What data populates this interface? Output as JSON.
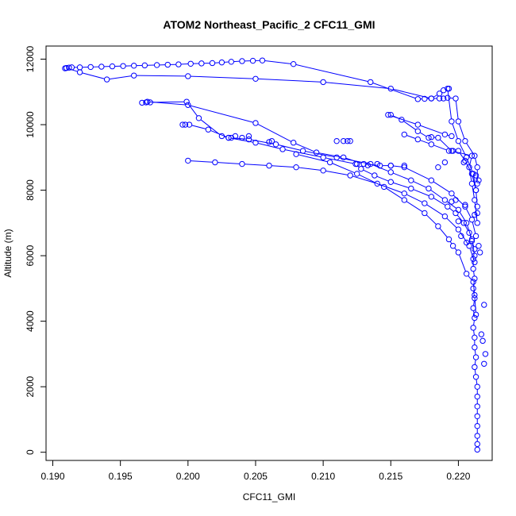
{
  "chart_data": {
    "type": "scatter",
    "title": "ATOM2 Northeast_Pacific_2 CFC11_GMI",
    "xlabel": "CFC11_GMI",
    "ylabel": "Altitude (m)",
    "xlim": [
      0.1895,
      0.2225
    ],
    "ylim": [
      -250,
      12400
    ],
    "xticks": [
      0.19,
      0.195,
      0.2,
      0.205,
      0.21,
      0.215,
      0.22
    ],
    "xtick_labels": [
      "0.190",
      "0.195",
      "0.200",
      "0.205",
      "0.210",
      "0.215",
      "0.220"
    ],
    "yticks": [
      0,
      2000,
      4000,
      6000,
      8000,
      10000,
      12000
    ],
    "ytick_labels": [
      "0",
      "2000",
      "4000",
      "6000",
      "8000",
      "10000",
      "12000"
    ],
    "grid": false,
    "legend": "none",
    "color": "#0000ff",
    "marker": "open-circle",
    "series": [
      {
        "connected": true,
        "points": [
          [
            0.2214,
            80
          ],
          [
            0.2214,
            250
          ],
          [
            0.2214,
            500
          ],
          [
            0.2214,
            800
          ],
          [
            0.2214,
            1100
          ],
          [
            0.2214,
            1400
          ],
          [
            0.2214,
            1700
          ],
          [
            0.2214,
            2000
          ],
          [
            0.2213,
            2300
          ],
          [
            0.2212,
            2600
          ],
          [
            0.2213,
            2900
          ],
          [
            0.2212,
            3200
          ],
          [
            0.2212,
            3500
          ],
          [
            0.2211,
            3800
          ],
          [
            0.2212,
            4100
          ],
          [
            0.2211,
            4400
          ],
          [
            0.2212,
            4700
          ],
          [
            0.2211,
            5000
          ],
          [
            0.2212,
            5300
          ],
          [
            0.2211,
            5600
          ],
          [
            0.2211,
            5900
          ],
          [
            0.2212,
            6200
          ],
          [
            0.221,
            6450
          ],
          [
            0.2208,
            6700
          ],
          [
            0.2204,
            7000
          ],
          [
            0.2198,
            7300
          ],
          [
            0.2192,
            7500
          ],
          [
            0.218,
            7800
          ],
          [
            0.2165,
            8050
          ],
          [
            0.215,
            8250
          ],
          [
            0.2138,
            8450
          ],
          [
            0.2128,
            8650
          ],
          [
            0.2124,
            8800
          ],
          [
            0.21,
            9000
          ],
          [
            0.207,
            9250
          ],
          [
            0.205,
            9450
          ],
          [
            0.203,
            9600
          ],
          [
            0.2015,
            9850
          ],
          [
            0.2001,
            10000
          ],
          [
            0.1998,
            10000
          ],
          [
            0.1996,
            10000
          ]
        ]
      },
      {
        "connected": true,
        "points": [
          [
            0.2212,
            6000
          ],
          [
            0.221,
            6500
          ],
          [
            0.2206,
            7000
          ],
          [
            0.22,
            7400
          ],
          [
            0.219,
            7700
          ],
          [
            0.2178,
            8050
          ],
          [
            0.2165,
            8300
          ],
          [
            0.215,
            8550
          ],
          [
            0.2135,
            8800
          ],
          [
            0.211,
            9000
          ],
          [
            0.2085,
            9200
          ],
          [
            0.2065,
            9400
          ],
          [
            0.2045,
            9550
          ],
          [
            0.2032,
            9600
          ],
          [
            0.203,
            9600
          ],
          [
            0.2025,
            9650
          ],
          [
            0.2008,
            10200
          ],
          [
            0.1999,
            10700
          ],
          [
            0.1972,
            10680
          ],
          [
            0.1969,
            10680
          ],
          [
            0.1966,
            10670
          ]
        ]
      },
      {
        "connected": true,
        "points": [
          [
            0.2213,
            6600
          ],
          [
            0.221,
            7100
          ],
          [
            0.2205,
            7500
          ],
          [
            0.2195,
            7900
          ],
          [
            0.218,
            8300
          ],
          [
            0.216,
            8700
          ],
          [
            0.215,
            8750
          ],
          [
            0.2142,
            8750
          ],
          [
            0.213,
            8800
          ],
          [
            0.2115,
            9000
          ],
          [
            0.2095,
            9150
          ],
          [
            0.2078,
            9450
          ],
          [
            0.205,
            10050
          ],
          [
            0.2,
            10600
          ],
          [
            0.197,
            10700
          ]
        ]
      },
      {
        "connected": true,
        "points": [
          [
            0.2214,
            7000
          ],
          [
            0.2212,
            7700
          ],
          [
            0.221,
            8200
          ],
          [
            0.2208,
            8700
          ],
          [
            0.221,
            9050
          ],
          [
            0.2195,
            9200
          ],
          [
            0.2185,
            9600
          ],
          [
            0.218,
            9620
          ],
          [
            0.2178,
            9600
          ],
          [
            0.217,
            9800
          ],
          [
            0.2158,
            10150
          ],
          [
            0.215,
            10300
          ],
          [
            0.2148,
            10300
          ],
          [
            0.217,
            10000
          ],
          [
            0.219,
            9700
          ],
          [
            0.2195,
            9650
          ]
        ]
      },
      {
        "connected": true,
        "points": [
          [
            0.2213,
            8000
          ],
          [
            0.221,
            8500
          ],
          [
            0.2205,
            8900
          ],
          [
            0.22,
            9200
          ],
          [
            0.2196,
            9200
          ],
          [
            0.2193,
            9200
          ],
          [
            0.218,
            9400
          ],
          [
            0.217,
            9550
          ],
          [
            0.216,
            9700
          ]
        ]
      },
      {
        "connected": true,
        "points": [
          [
            0.2214,
            8200
          ],
          [
            0.2214,
            8700
          ],
          [
            0.2212,
            9050
          ],
          [
            0.2205,
            9500
          ],
          [
            0.22,
            10100
          ],
          [
            0.2198,
            10800
          ],
          [
            0.2192,
            10820
          ],
          [
            0.2189,
            10800
          ],
          [
            0.2186,
            10800
          ],
          [
            0.218,
            10800
          ],
          [
            0.2175,
            10790
          ],
          [
            0.217,
            10780
          ],
          [
            0.2135,
            11300
          ],
          [
            0.2078,
            11850
          ],
          [
            0.2055,
            11960
          ],
          [
            0.2048,
            11950
          ],
          [
            0.204,
            11940
          ],
          [
            0.2032,
            11920
          ],
          [
            0.2025,
            11900
          ],
          [
            0.2018,
            11880
          ],
          [
            0.201,
            11870
          ],
          [
            0.2002,
            11860
          ],
          [
            0.1993,
            11840
          ],
          [
            0.1985,
            11830
          ],
          [
            0.1977,
            11820
          ],
          [
            0.1968,
            11810
          ],
          [
            0.196,
            11800
          ],
          [
            0.1952,
            11790
          ],
          [
            0.1944,
            11780
          ],
          [
            0.1936,
            11770
          ],
          [
            0.1928,
            11760
          ],
          [
            0.192,
            11750
          ],
          [
            0.1914,
            11750
          ],
          [
            0.1912,
            11740
          ],
          [
            0.191,
            11730
          ],
          [
            0.1909,
            11720
          ]
        ]
      },
      {
        "connected": true,
        "points": [
          [
            0.2214,
            7500
          ],
          [
            0.2213,
            8000
          ],
          [
            0.2211,
            8500
          ],
          [
            0.2206,
            9000
          ],
          [
            0.22,
            9500
          ],
          [
            0.2195,
            10100
          ],
          [
            0.2192,
            11100
          ],
          [
            0.2193,
            11100
          ],
          [
            0.2189,
            11050
          ],
          [
            0.2186,
            10950
          ],
          [
            0.218,
            10800
          ],
          [
            0.215,
            11100
          ],
          [
            0.21,
            11300
          ],
          [
            0.205,
            11400
          ],
          [
            0.2,
            11480
          ],
          [
            0.196,
            11500
          ],
          [
            0.194,
            11380
          ],
          [
            0.192,
            11600
          ],
          [
            0.191,
            11730
          ]
        ]
      },
      {
        "connected": true,
        "points": [
          [
            0.2212,
            5800
          ],
          [
            0.2208,
            6300
          ],
          [
            0.22,
            6800
          ],
          [
            0.219,
            7200
          ],
          [
            0.2175,
            7600
          ],
          [
            0.216,
            7900
          ],
          [
            0.214,
            8200
          ],
          [
            0.212,
            8450
          ],
          [
            0.21,
            8600
          ],
          [
            0.208,
            8700
          ],
          [
            0.206,
            8750
          ],
          [
            0.204,
            8800
          ],
          [
            0.202,
            8850
          ],
          [
            0.2,
            8900
          ]
        ]
      },
      {
        "connected": true,
        "points": [
          [
            0.2213,
            4200
          ],
          [
            0.2212,
            4800
          ],
          [
            0.2211,
            5200
          ],
          [
            0.2206,
            5450
          ],
          [
            0.22,
            6100
          ],
          [
            0.2196,
            6300
          ],
          [
            0.2193,
            6500
          ],
          [
            0.2185,
            6900
          ],
          [
            0.2175,
            7300
          ],
          [
            0.216,
            7700
          ],
          [
            0.2145,
            8100
          ],
          [
            0.2125,
            8500
          ],
          [
            0.2105,
            8850
          ],
          [
            0.208,
            9100
          ]
        ]
      },
      {
        "connected": false,
        "points": [
          [
            0.2218,
            3400
          ],
          [
            0.222,
            3000
          ],
          [
            0.2219,
            2700
          ],
          [
            0.2217,
            3600
          ],
          [
            0.2219,
            4500
          ],
          [
            0.2215,
            6300
          ],
          [
            0.2216,
            6100
          ],
          [
            0.2206,
            6400
          ],
          [
            0.2202,
            6600
          ],
          [
            0.22,
            7050
          ],
          [
            0.2212,
            7250
          ],
          [
            0.2214,
            7300
          ],
          [
            0.2195,
            7650
          ],
          [
            0.2198,
            7700
          ],
          [
            0.2205,
            7550
          ],
          [
            0.2213,
            8450
          ],
          [
            0.2215,
            8300
          ],
          [
            0.2204,
            8850
          ],
          [
            0.219,
            8850
          ],
          [
            0.2185,
            8700
          ],
          [
            0.216,
            8750
          ],
          [
            0.215,
            8750
          ],
          [
            0.214,
            8800
          ],
          [
            0.2133,
            8760
          ],
          [
            0.2125,
            8800
          ],
          [
            0.212,
            9500
          ],
          [
            0.2118,
            9500
          ],
          [
            0.2115,
            9500
          ],
          [
            0.211,
            9500
          ],
          [
            0.204,
            9600
          ],
          [
            0.2035,
            9650
          ],
          [
            0.206,
            9470
          ],
          [
            0.2062,
            9500
          ],
          [
            0.2045,
            9650
          ]
        ]
      }
    ]
  }
}
